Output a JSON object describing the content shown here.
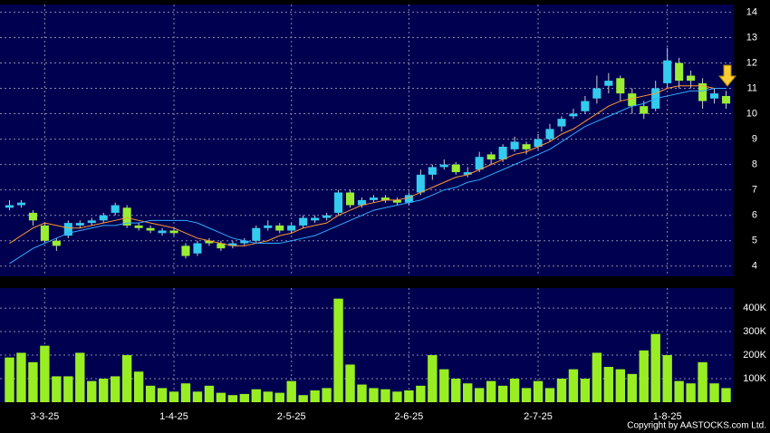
{
  "chart_data": [
    {
      "type": "candlestick",
      "up_color": "#33ccee",
      "down_color": "#99ee33",
      "open": [
        6.3,
        6.4,
        6.1,
        5.6,
        5.0,
        5.2,
        5.6,
        5.7,
        5.8,
        6.1,
        6.3,
        5.6,
        5.5,
        5.3,
        5.4,
        4.8,
        4.5,
        5.0,
        4.9,
        4.8,
        4.9,
        5.0,
        5.5,
        5.6,
        5.4,
        5.6,
        5.8,
        5.9,
        6.1,
        6.9,
        6.4,
        6.6,
        6.7,
        6.6,
        6.5,
        6.9,
        7.6,
        7.9,
        8.0,
        7.6,
        7.8,
        8.4,
        8.2,
        8.6,
        8.8,
        8.7,
        9.0,
        9.5,
        9.9,
        10.1,
        10.6,
        11.1,
        11.4,
        10.8,
        10.3,
        10.2,
        11.2,
        12.0,
        11.5,
        11.2,
        10.6,
        10.7
      ],
      "high": [
        6.6,
        6.6,
        6.2,
        5.7,
        5.1,
        5.8,
        5.8,
        5.9,
        6.1,
        6.5,
        6.4,
        5.7,
        5.6,
        5.5,
        5.5,
        4.9,
        5.0,
        5.1,
        5.0,
        5.0,
        5.1,
        5.6,
        5.8,
        5.7,
        5.7,
        6.0,
        6.0,
        6.1,
        7.0,
        7.0,
        6.7,
        6.8,
        6.8,
        6.7,
        6.9,
        7.8,
        8.0,
        8.2,
        8.1,
        7.9,
        8.5,
        8.5,
        8.8,
        9.1,
        8.9,
        9.2,
        9.6,
        9.9,
        10.2,
        10.7,
        11.5,
        11.6,
        11.5,
        11.0,
        10.5,
        11.3,
        12.6,
        12.2,
        11.7,
        11.4,
        11.0,
        10.9
      ],
      "low": [
        6.2,
        6.3,
        5.6,
        4.9,
        4.6,
        5.1,
        5.5,
        5.6,
        5.7,
        6.0,
        5.5,
        5.4,
        5.3,
        5.2,
        5.2,
        4.3,
        4.4,
        4.8,
        4.6,
        4.7,
        4.8,
        4.9,
        5.4,
        5.3,
        5.3,
        5.5,
        5.7,
        5.8,
        6.0,
        6.3,
        6.3,
        6.5,
        6.5,
        6.4,
        6.4,
        6.8,
        7.4,
        7.8,
        7.6,
        7.5,
        7.7,
        8.0,
        8.1,
        8.5,
        8.4,
        8.6,
        8.9,
        9.3,
        9.8,
        10.0,
        10.4,
        10.8,
        10.5,
        10.0,
        9.8,
        10.1,
        11.0,
        11.0,
        11.0,
        10.2,
        10.4,
        10.2
      ],
      "close": [
        6.4,
        6.5,
        5.8,
        5.0,
        4.8,
        5.7,
        5.7,
        5.8,
        6.0,
        6.4,
        5.6,
        5.5,
        5.4,
        5.4,
        5.3,
        4.4,
        4.9,
        4.9,
        4.7,
        4.9,
        5.0,
        5.5,
        5.6,
        5.4,
        5.6,
        5.9,
        5.9,
        6.0,
        6.9,
        6.4,
        6.6,
        6.7,
        6.6,
        6.5,
        6.8,
        7.6,
        7.9,
        8.0,
        7.7,
        7.7,
        8.3,
        8.2,
        8.7,
        8.9,
        8.6,
        9.0,
        9.4,
        9.8,
        10.0,
        10.5,
        11.0,
        11.3,
        10.8,
        10.3,
        10.0,
        11.0,
        12.1,
        11.3,
        11.3,
        10.5,
        10.8,
        10.4
      ],
      "lines": [
        {
          "color": "#ff9933",
          "values": [
            4.9,
            5.2,
            5.5,
            5.7,
            5.6,
            5.5,
            5.5,
            5.6,
            5.7,
            5.8,
            5.9,
            5.8,
            5.7,
            5.6,
            5.5,
            5.3,
            5.1,
            5.0,
            4.9,
            4.8,
            4.8,
            4.9,
            5.0,
            5.2,
            5.3,
            5.5,
            5.6,
            5.7,
            6.0,
            6.2,
            6.4,
            6.5,
            6.6,
            6.6,
            6.7,
            6.9,
            7.1,
            7.3,
            7.5,
            7.6,
            7.8,
            8.0,
            8.2,
            8.4,
            8.5,
            8.7,
            8.9,
            9.2,
            9.4,
            9.7,
            10.0,
            10.3,
            10.5,
            10.6,
            10.7,
            10.8,
            11.0,
            11.1,
            11.1,
            11.1,
            11.0,
            11.0
          ]
        },
        {
          "color": "#33aaff",
          "values": [
            4.1,
            4.4,
            4.7,
            4.9,
            5.1,
            5.3,
            5.4,
            5.5,
            5.6,
            5.6,
            5.7,
            5.7,
            5.8,
            5.8,
            5.8,
            5.8,
            5.7,
            5.5,
            5.3,
            5.1,
            5.0,
            4.9,
            4.9,
            4.9,
            5.0,
            5.1,
            5.2,
            5.4,
            5.6,
            5.8,
            6.0,
            6.2,
            6.3,
            6.4,
            6.5,
            6.6,
            6.8,
            7.0,
            7.1,
            7.3,
            7.4,
            7.6,
            7.8,
            8.0,
            8.2,
            8.4,
            8.6,
            8.9,
            9.2,
            9.5,
            9.7,
            9.9,
            10.1,
            10.3,
            10.4,
            10.6,
            10.7,
            10.8,
            10.9,
            10.9,
            11.0,
            11.0
          ]
        }
      ],
      "ylim": [
        3.6,
        14.3
      ],
      "yticks": [
        4,
        5,
        6,
        7,
        8,
        9,
        10,
        11,
        12,
        13,
        14
      ],
      "grid": true
    },
    {
      "type": "bar",
      "color": "#99ee22",
      "categories": [
        null,
        null,
        null,
        "3-3-25",
        null,
        null,
        null,
        null,
        null,
        null,
        null,
        null,
        null,
        null,
        "1-4-25",
        null,
        null,
        null,
        null,
        null,
        null,
        null,
        null,
        null,
        "2-5-25",
        null,
        null,
        null,
        null,
        null,
        null,
        null,
        null,
        null,
        "2-6-25",
        null,
        null,
        null,
        null,
        null,
        null,
        null,
        null,
        null,
        null,
        "2-7-25",
        null,
        null,
        null,
        null,
        null,
        null,
        null,
        null,
        null,
        null,
        "1-8-25",
        null,
        null,
        null,
        null,
        null
      ],
      "values": [
        190000,
        210000,
        170000,
        240000,
        110000,
        110000,
        210000,
        90000,
        100000,
        110000,
        200000,
        130000,
        70000,
        60000,
        45000,
        80000,
        45000,
        70000,
        40000,
        30000,
        35000,
        55000,
        45000,
        40000,
        90000,
        30000,
        50000,
        60000,
        440000,
        160000,
        75000,
        60000,
        55000,
        45000,
        50000,
        70000,
        200000,
        140000,
        100000,
        80000,
        60000,
        90000,
        70000,
        100000,
        60000,
        90000,
        60000,
        100000,
        140000,
        100000,
        210000,
        150000,
        140000,
        120000,
        220000,
        290000,
        200000,
        90000,
        80000,
        170000,
        80000,
        60000
      ],
      "ylim": [
        0,
        485000
      ],
      "yticks": [
        {
          "value": 100000,
          "label": "100K"
        },
        {
          "value": 200000,
          "label": "200K"
        },
        {
          "value": 300000,
          "label": "300K"
        },
        {
          "value": 400000,
          "label": "400K"
        }
      ],
      "grid": true
    }
  ],
  "copyright": "Copyright by AASTOCKS.com Ltd."
}
